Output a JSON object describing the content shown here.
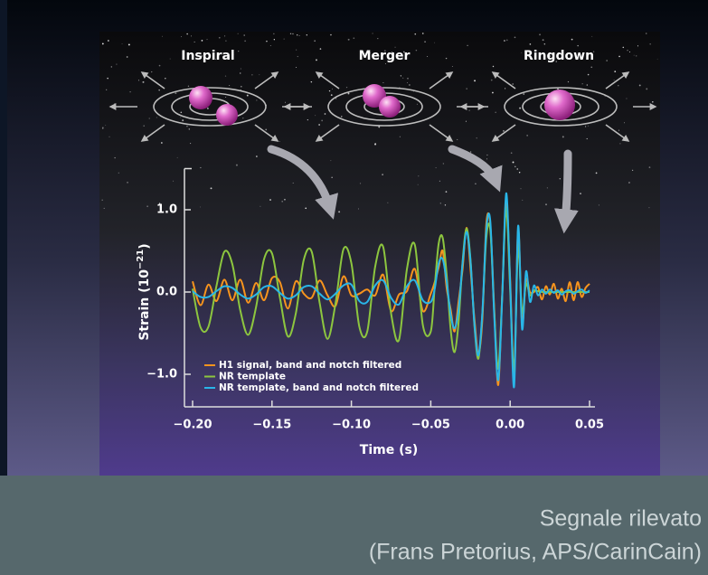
{
  "chart_data": {
    "type": "line",
    "annotations": [
      "Inspiral",
      "Merger",
      "Ringdown"
    ],
    "xlabel": "Time (s)",
    "ylabel": {
      "base": "Strain (10",
      "sup": "−21",
      "close": ")"
    },
    "xlim": [
      -0.2,
      0.05
    ],
    "ylim": [
      -1.4,
      1.5
    ],
    "xticks": [
      {
        "value": -0.2,
        "label": "−0.20"
      },
      {
        "value": -0.15,
        "label": "−0.15"
      },
      {
        "value": -0.1,
        "label": "−0.10"
      },
      {
        "value": -0.05,
        "label": "−0.05"
      },
      {
        "value": 0,
        "label": "0.00"
      },
      {
        "value": 0.05,
        "label": "0.05"
      }
    ],
    "yticks": [
      {
        "value": 1,
        "label": "1.0"
      },
      {
        "value": 0,
        "label": "0.0"
      },
      {
        "value": -1,
        "label": "−1.0"
      }
    ],
    "legend": "lower left",
    "x": [
      -0.2,
      -0.195,
      -0.19,
      -0.185,
      -0.18,
      -0.175,
      -0.17,
      -0.165,
      -0.16,
      -0.155,
      -0.15,
      -0.145,
      -0.14,
      -0.135,
      -0.13,
      -0.125,
      -0.12,
      -0.115,
      -0.11,
      -0.105,
      -0.1,
      -0.095,
      -0.09,
      -0.085,
      -0.08,
      -0.075,
      -0.07,
      -0.065,
      -0.06,
      -0.055,
      -0.05,
      -0.0475,
      -0.045,
      -0.0425,
      -0.04,
      -0.0375,
      -0.035,
      -0.0325,
      -0.03,
      -0.0275,
      -0.025,
      -0.0225,
      -0.02,
      -0.0175,
      -0.015,
      -0.0125,
      -0.01,
      -0.0075,
      -0.005,
      -0.0025,
      0,
      0.0025,
      0.005,
      0.0075,
      0.01,
      0.0125,
      0.015,
      0.0175,
      0.02,
      0.0225,
      0.025,
      0.0275,
      0.03,
      0.0325,
      0.035,
      0.0375,
      0.04,
      0.0425,
      0.045,
      0.0475,
      0.05
    ],
    "series": [
      {
        "name": "H1 signal, band and notch filtered",
        "color": "#f7941d",
        "values": [
          0.13,
          -0.16,
          0.09,
          -0.11,
          0.15,
          -0.1,
          0.15,
          -0.13,
          0.11,
          -0.1,
          0.17,
          0.12,
          -0.2,
          0.13,
          -0.02,
          -0.07,
          0.14,
          -0.04,
          -0.17,
          0.19,
          -0.04,
          -0.02,
          0.03,
          -0.04,
          0.21,
          -0.23,
          -0.03,
          0.01,
          0.28,
          -0.23,
          -0.02,
          0.12,
          0.3,
          0.5,
          0.05,
          -0.21,
          -0.48,
          -0.12,
          0.27,
          0.78,
          0.29,
          -0.33,
          -0.74,
          -0.33,
          0.83,
          0.81,
          -0.22,
          -1.13,
          -0.02,
          1.1,
          0.15,
          -1.05,
          0.75,
          -0.37,
          0.15,
          0.0,
          0.0,
          0.06,
          -0.09,
          0.07,
          -0.03,
          0.1,
          -0.08,
          0.04,
          -0.11,
          0.12,
          -0.1,
          0.12,
          -0.06,
          0.05,
          0.1
        ]
      },
      {
        "name": "NR template",
        "color": "#8dc63f",
        "values": [
          0.04,
          -0.43,
          -0.42,
          0.07,
          0.49,
          0.34,
          -0.22,
          -0.52,
          -0.18,
          0.4,
          0.47,
          -0.07,
          -0.54,
          -0.26,
          0.39,
          0.49,
          -0.13,
          -0.57,
          -0.14,
          0.52,
          0.35,
          -0.42,
          -0.48,
          0.31,
          0.55,
          -0.26,
          -0.58,
          0.28,
          0.57,
          -0.4,
          -0.48,
          0.07,
          0.59,
          0.66,
          0.21,
          -0.45,
          -0.73,
          -0.37,
          0.36,
          0.77,
          0.4,
          -0.41,
          -0.81,
          -0.26,
          0.66,
          0.75,
          -0.26,
          -0.93,
          -0.05,
          1.01,
          0.02,
          -0.95,
          0.55,
          -0.25,
          0.1,
          -0.04,
          0.02,
          0.01,
          0,
          0,
          0,
          0,
          0,
          0,
          0,
          0,
          0,
          0,
          0,
          0,
          0
        ]
      },
      {
        "name": "NR template, band and notch filtered",
        "color": "#29b6e8",
        "values": [
          0.01,
          -0.06,
          -0.06,
          0.01,
          0.07,
          0.05,
          -0.03,
          -0.08,
          -0.03,
          0.06,
          0.07,
          -0.01,
          -0.08,
          -0.04,
          0.06,
          0.07,
          -0.02,
          -0.09,
          -0.02,
          0.08,
          0.09,
          -0.11,
          -0.12,
          0.08,
          0.14,
          -0.07,
          -0.15,
          0.07,
          0.14,
          -0.1,
          -0.12,
          0.04,
          0.35,
          0.4,
          0.13,
          -0.27,
          -0.44,
          -0.22,
          0.34,
          0.73,
          0.38,
          -0.39,
          -0.77,
          -0.25,
          0.76,
          0.86,
          -0.3,
          -1.07,
          -0.06,
          1.2,
          0.1,
          -1.15,
          0.8,
          -0.45,
          0.25,
          -0.12,
          0.08,
          -0.04,
          0.03,
          -0.02,
          0.03,
          -0.01,
          0.02,
          -0.03,
          0.01,
          0.02,
          -0.02,
          0.01,
          0.03,
          -0.01,
          0.02
        ]
      }
    ]
  },
  "caption": [
    "Segnale rilevato",
    "(Frans Pretorius, APS/CarinCain)"
  ]
}
